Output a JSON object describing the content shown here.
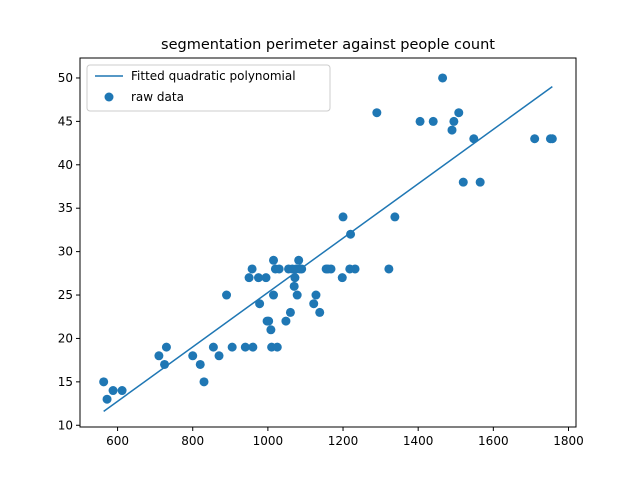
{
  "chart_data": {
    "type": "scatter",
    "title": "segmentation perimeter against people count",
    "xlabel": "",
    "ylabel": "",
    "xlim": [
      500,
      1820
    ],
    "ylim": [
      9.8,
      52.3
    ],
    "xticks": [
      600,
      800,
      1000,
      1200,
      1400,
      1600,
      1800
    ],
    "yticks": [
      10,
      15,
      20,
      25,
      30,
      35,
      40,
      45,
      50
    ],
    "grid": false,
    "legend_position": "top-left",
    "colors": {
      "series": "#1f77b4"
    },
    "series": [
      {
        "name": "Fitted quadratic polynomial",
        "kind": "line",
        "x": [
          563,
          1757
        ],
        "y": [
          11.6,
          49.0
        ]
      },
      {
        "name": "raw data",
        "kind": "scatter",
        "x": [
          563,
          572,
          588,
          612,
          710,
          725,
          730,
          800,
          820,
          830,
          855,
          870,
          890,
          905,
          940,
          950,
          958,
          960,
          975,
          978,
          995,
          998,
          1002,
          1008,
          1010,
          1015,
          1015,
          1020,
          1025,
          1030,
          1048,
          1055,
          1060,
          1065,
          1070,
          1072,
          1075,
          1078,
          1082,
          1085,
          1090,
          1122,
          1128,
          1138,
          1155,
          1160,
          1168,
          1198,
          1200,
          1218,
          1220,
          1232,
          1290,
          1322,
          1338,
          1405,
          1440,
          1465,
          1490,
          1495,
          1508,
          1520,
          1548,
          1565,
          1710,
          1752,
          1757
        ],
        "y": [
          15,
          13,
          14,
          14,
          18,
          17,
          19,
          18,
          17,
          15,
          19,
          18,
          25,
          19,
          19,
          27,
          28,
          19,
          27,
          24,
          27,
          22,
          22,
          21,
          19,
          25,
          29,
          28,
          19,
          28,
          22,
          28,
          23,
          28,
          26,
          27,
          28,
          25,
          29,
          28,
          28,
          24,
          25,
          23,
          28,
          28,
          28,
          27,
          34,
          28,
          32,
          28,
          46,
          28,
          34,
          45,
          45,
          50,
          44,
          45,
          46,
          38,
          43,
          38,
          43,
          43,
          43
        ]
      }
    ]
  }
}
